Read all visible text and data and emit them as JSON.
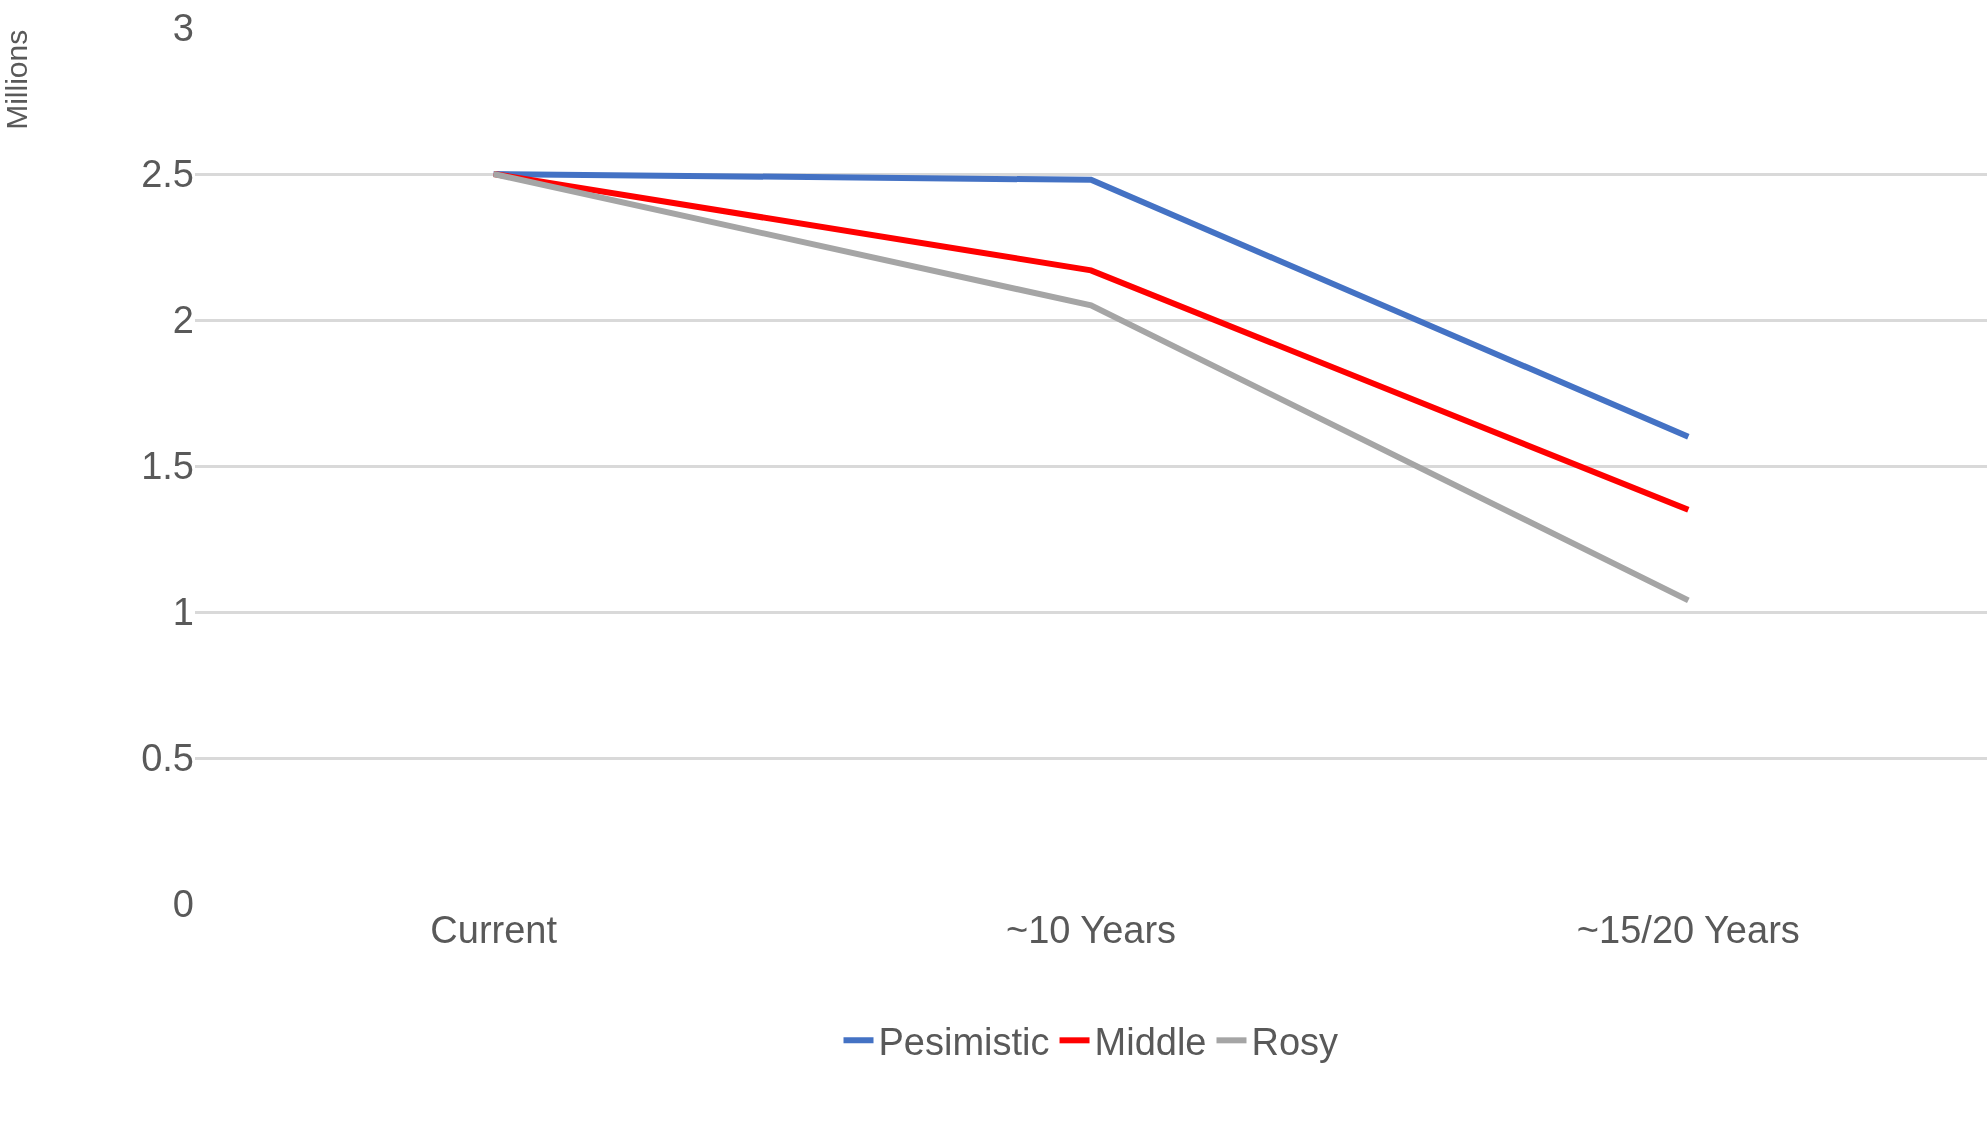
{
  "chart_data": {
    "type": "line",
    "ylabel": "Millions",
    "categories": [
      "Current",
      "~10 Years",
      "~15/20 Years"
    ],
    "series": [
      {
        "name": "Pesimistic",
        "color": "#4472c4",
        "values": [
          2.5,
          2.48,
          1.6
        ]
      },
      {
        "name": "Middle",
        "color": "#ff0000",
        "values": [
          2.5,
          2.17,
          1.35
        ]
      },
      {
        "name": "Rosy",
        "color": "#a5a5a5",
        "values": [
          2.5,
          2.05,
          1.04
        ]
      }
    ],
    "ylim": [
      0,
      3
    ],
    "yticks": [
      0,
      0.5,
      1,
      1.5,
      2,
      2.5,
      3
    ],
    "grid": "y",
    "legend": "bottom",
    "marker": "none",
    "line_style": "solid"
  }
}
